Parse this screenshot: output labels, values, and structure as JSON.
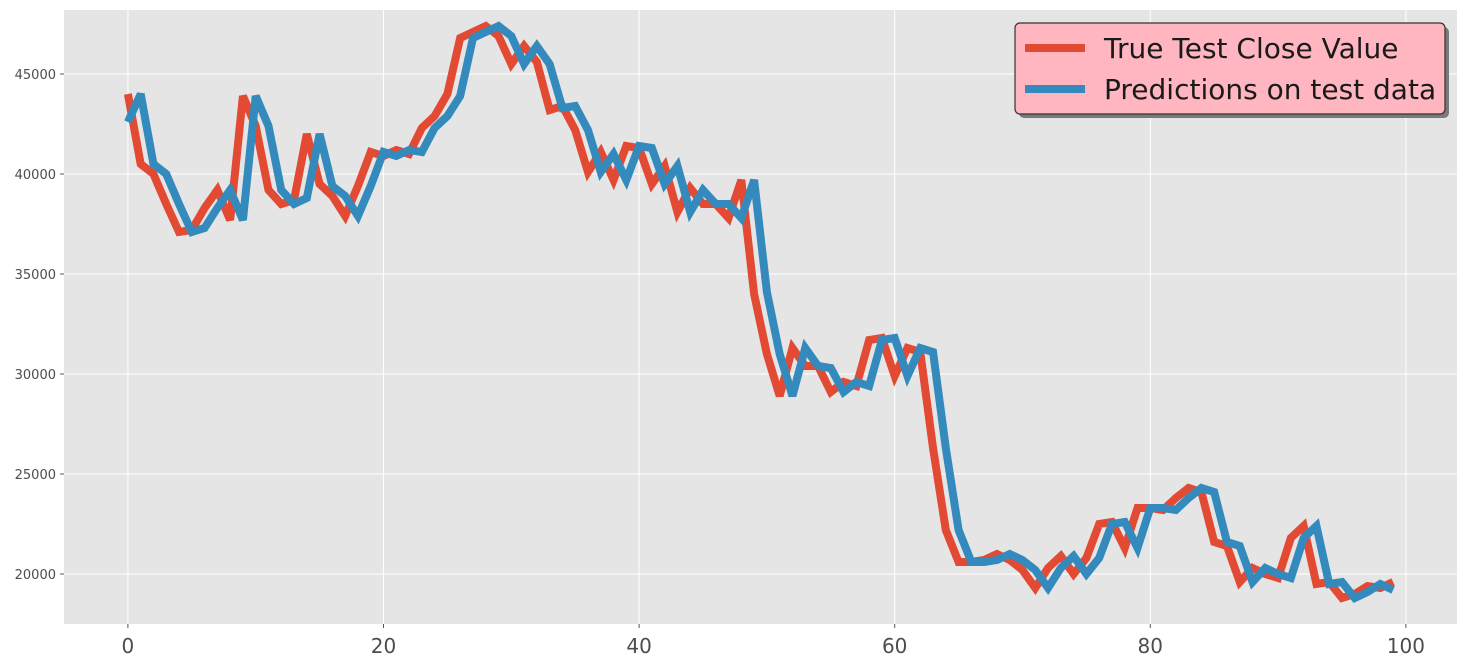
{
  "chart_data": {
    "type": "line",
    "title": "",
    "xlabel": "",
    "ylabel": "",
    "xlim": [
      -5,
      104
    ],
    "ylim": [
      17500,
      48200
    ],
    "x_ticks": [
      0,
      20,
      40,
      60,
      80,
      100
    ],
    "y_ticks": [
      20000,
      25000,
      30000,
      35000,
      40000,
      45000
    ],
    "grid": true,
    "legend_position": "top-right",
    "background": "#e5e5e5",
    "series": [
      {
        "name": "True Test Close Value",
        "color": "#e24a33",
        "values": [
          44000,
          40500,
          40000,
          38500,
          37100,
          37200,
          38300,
          39200,
          37700,
          43900,
          42400,
          39200,
          38500,
          38700,
          42000,
          39500,
          38900,
          37900,
          39400,
          41100,
          40900,
          41200,
          41000,
          42300,
          42900,
          44000,
          46800,
          47100,
          47400,
          46900,
          45500,
          46400,
          45600,
          43200,
          43400,
          42200,
          40100,
          41100,
          39700,
          41400,
          41300,
          39500,
          40400,
          38100,
          39300,
          38500,
          38500,
          37800,
          39700,
          34000,
          31000,
          28900,
          31300,
          30400,
          30400,
          29100,
          29600,
          29400,
          31700,
          31800,
          29900,
          31300,
          31100,
          26300,
          22200,
          20600,
          20600,
          20700,
          21000,
          20700,
          20200,
          19300,
          20300,
          20900,
          20000,
          20800,
          22500,
          22600,
          21300,
          23300,
          23300,
          23200,
          23800,
          24300,
          24100,
          21600,
          21400,
          19600,
          20300,
          20000,
          19800,
          21800,
          22400,
          19500,
          19600,
          18800,
          19000,
          19400,
          19300,
          19600
        ]
      },
      {
        "name": "Predictions on test data",
        "color": "#348abd",
        "values": [
          42600,
          44000,
          40500,
          40000,
          38500,
          37100,
          37300,
          38300,
          39200,
          37700,
          43900,
          42400,
          39200,
          38500,
          38800,
          42000,
          39400,
          38900,
          37900,
          39400,
          41100,
          40900,
          41200,
          41100,
          42300,
          42900,
          43900,
          46800,
          47100,
          47400,
          46900,
          45500,
          46400,
          45500,
          43300,
          43400,
          42200,
          40100,
          41000,
          39700,
          41400,
          41300,
          39500,
          40400,
          38100,
          39200,
          38500,
          38500,
          37800,
          39700,
          34100,
          31000,
          28900,
          31300,
          30400,
          30300,
          29100,
          29600,
          29400,
          31700,
          31800,
          29900,
          31300,
          31100,
          26300,
          22200,
          20600,
          20600,
          20700,
          21000,
          20700,
          20200,
          19300,
          20300,
          20900,
          20000,
          20800,
          22500,
          22600,
          21300,
          23300,
          23300,
          23200,
          23800,
          24300,
          24100,
          21600,
          21400,
          19600,
          20300,
          20000,
          19800,
          21800,
          22400,
          19500,
          19600,
          18800,
          19100,
          19500,
          19200
        ]
      }
    ]
  }
}
